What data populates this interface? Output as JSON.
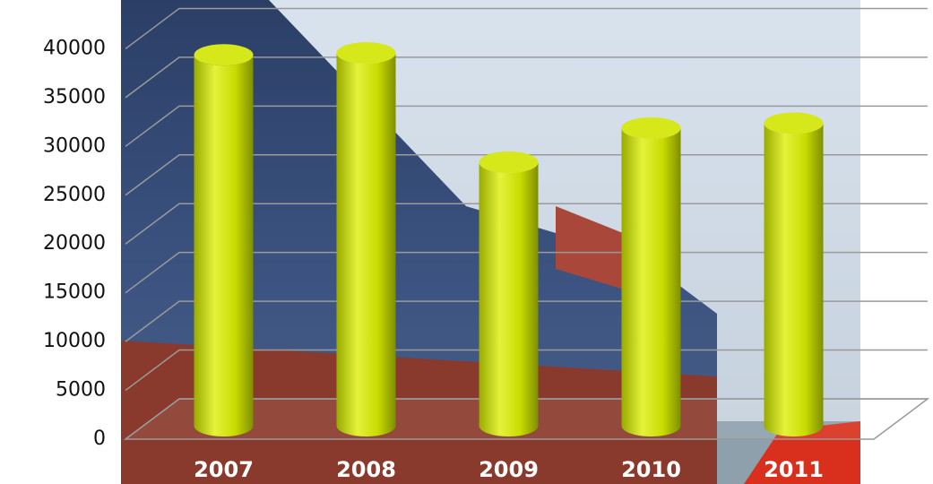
{
  "chart_data": {
    "type": "bar",
    "categories": [
      "2007",
      "2008",
      "2009",
      "2010",
      "2011"
    ],
    "values": [
      38000,
      38200,
      27000,
      30500,
      31000
    ],
    "color": "#c8dc00",
    "ylim": [
      0,
      45000
    ],
    "yticks": [
      0,
      5000,
      10000,
      15000,
      20000,
      25000,
      30000,
      35000,
      40000
    ],
    "grid": true
  }
}
